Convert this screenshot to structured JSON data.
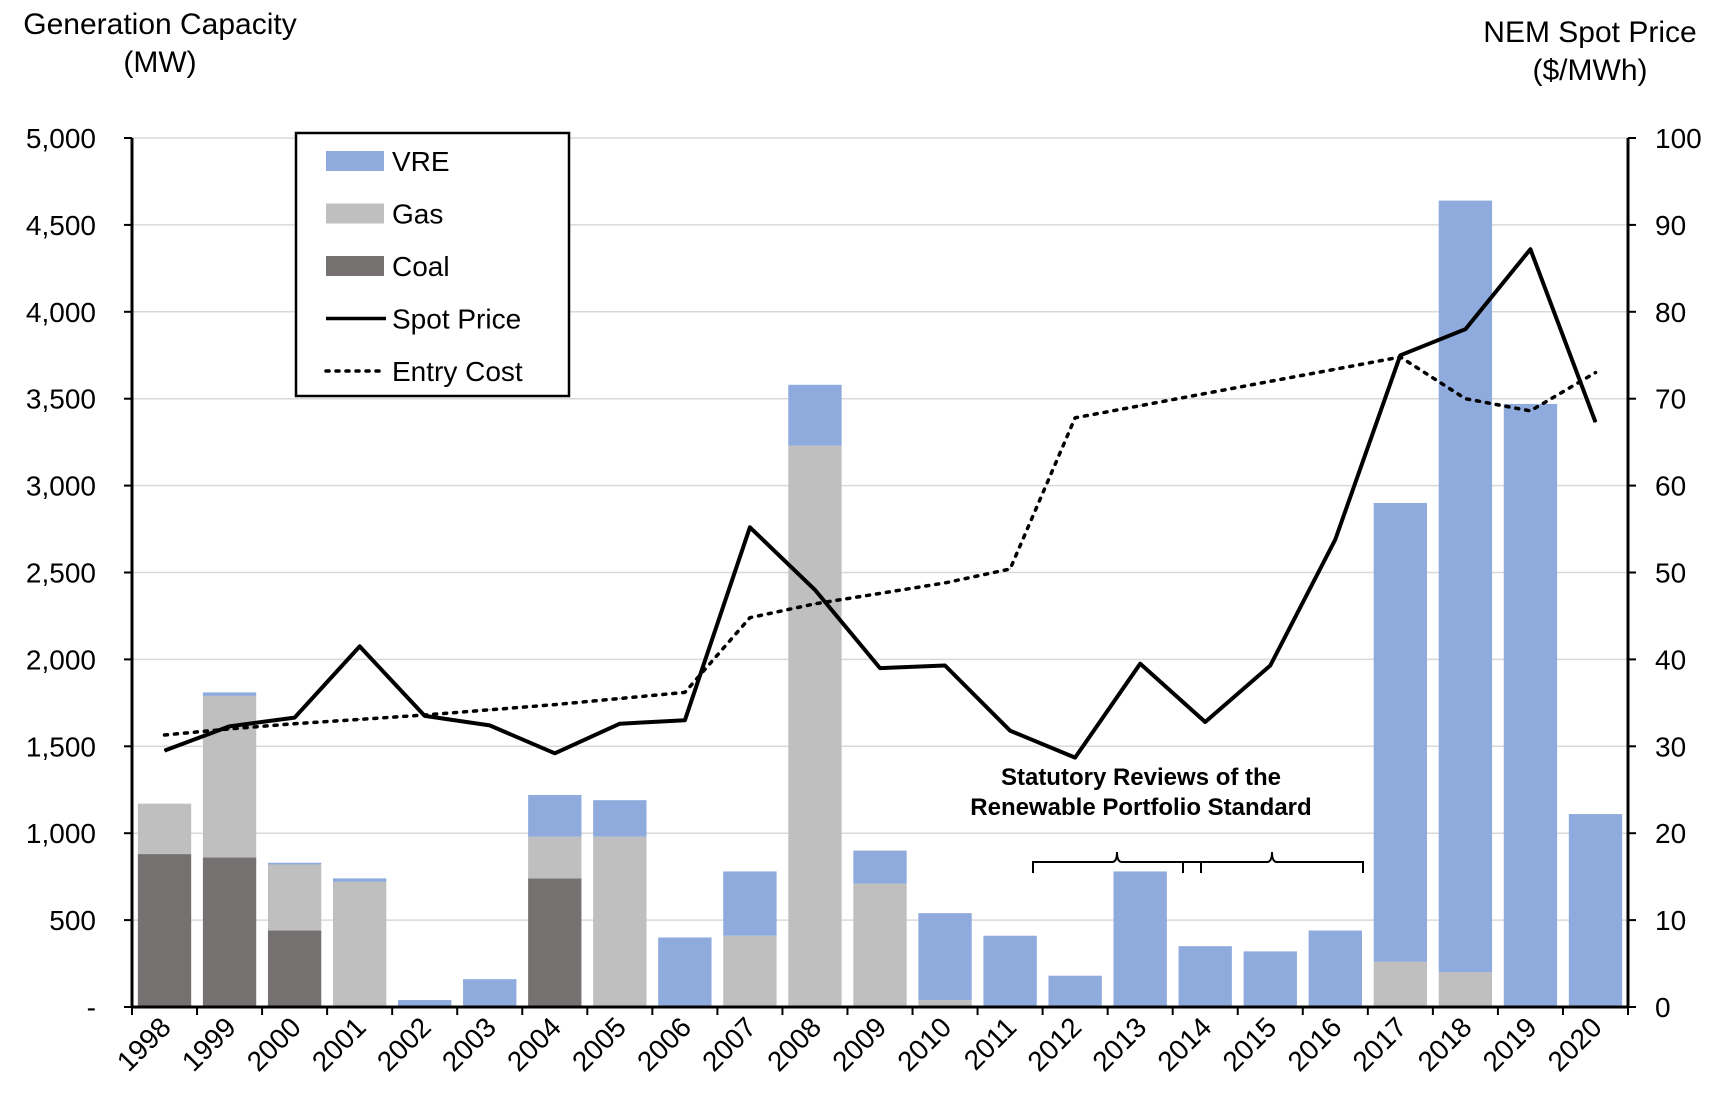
{
  "left_axis_title": [
    "Generation  Capacity",
    "(MW)"
  ],
  "right_axis_title": [
    "NEM Spot Price",
    "($/MWh)"
  ],
  "annotation": [
    "Statutory Reviews of the",
    "Renewable Portfolio Standard"
  ],
  "colors": {
    "VRE": "#8faadc",
    "Gas": "#bfbfbf",
    "Coal": "#767171",
    "line": "#000000",
    "grid": "#d9d9d9"
  },
  "chart_data": {
    "type": "bar",
    "categories": [
      "1998",
      "1999",
      "2000",
      "2001",
      "2002",
      "2003",
      "2004",
      "2005",
      "2006",
      "2007",
      "2008",
      "2009",
      "2010",
      "2011",
      "2012",
      "2013",
      "2014",
      "2015",
      "2016",
      "2017",
      "2018",
      "2019",
      "2020"
    ],
    "y_left": {
      "label": "Generation  Capacity (MW)",
      "range": [
        0,
        5000
      ],
      "ticks": [
        "-",
        "500",
        "1,000",
        "1,500",
        "2,000",
        "2,500",
        "3,000",
        "3,500",
        "4,000",
        "4,500",
        "5,000"
      ]
    },
    "y_right": {
      "label": "NEM Spot Price ($/MWh)",
      "range": [
        0,
        100
      ],
      "ticks": [
        "0",
        "10",
        "20",
        "30",
        "40",
        "50",
        "60",
        "70",
        "80",
        "90",
        "100"
      ]
    },
    "stacked_series": [
      {
        "name": "Coal",
        "values": [
          880,
          860,
          440,
          0,
          0,
          0,
          740,
          0,
          0,
          0,
          0,
          0,
          0,
          0,
          0,
          0,
          0,
          0,
          0,
          0,
          0,
          0,
          0
        ]
      },
      {
        "name": "Gas",
        "values": [
          290,
          930,
          380,
          720,
          0,
          0,
          240,
          980,
          0,
          410,
          3230,
          710,
          40,
          0,
          0,
          0,
          0,
          0,
          0,
          260,
          200,
          0,
          0
        ]
      },
      {
        "name": "VRE",
        "values": [
          0,
          20,
          10,
          20,
          40,
          160,
          240,
          210,
          400,
          370,
          350,
          190,
          500,
          410,
          180,
          780,
          350,
          320,
          440,
          2640,
          4440,
          3470,
          1110
        ]
      }
    ],
    "line_series": [
      {
        "name": "Spot Price",
        "style": "solid",
        "values": [
          29.5,
          32.3,
          33.3,
          41.5,
          33.5,
          32.4,
          29.2,
          32.6,
          33.0,
          55.2,
          48.0,
          39.0,
          39.3,
          31.8,
          28.7,
          39.5,
          32.8,
          39.3,
          53.8,
          75.0,
          78.0,
          87.2,
          67.3
        ]
      },
      {
        "name": "Entry Cost",
        "style": "dotted",
        "values": [
          31.3,
          32.0,
          32.6,
          33.1,
          33.6,
          34.2,
          34.8,
          35.5,
          36.2,
          44.8,
          46.4,
          47.6,
          48.8,
          50.4,
          67.8,
          69.2,
          70.6,
          72.0,
          73.4,
          74.8,
          70.0,
          68.6,
          73.0
        ]
      }
    ],
    "legend": {
      "position": "top-left",
      "entries": [
        "VRE",
        "Gas",
        "Coal",
        "Spot Price",
        "Entry Cost"
      ]
    },
    "grid": true
  }
}
